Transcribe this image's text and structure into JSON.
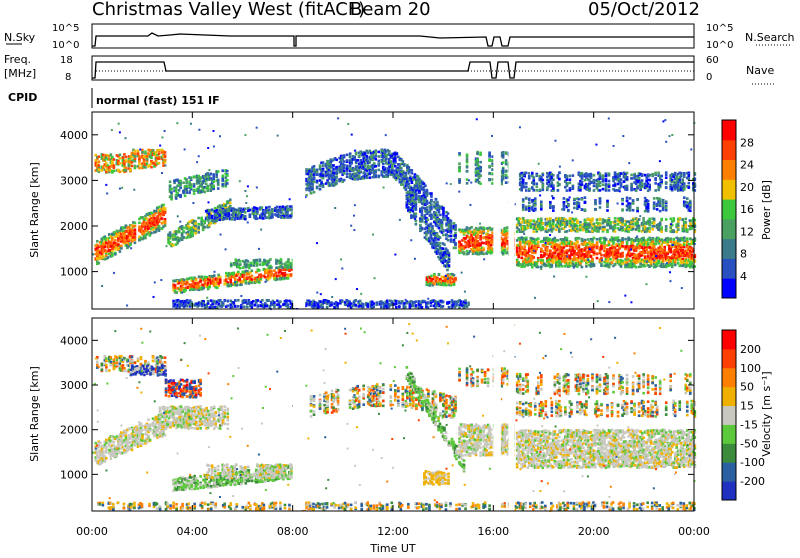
{
  "header": {
    "station": "Christmas Valley West (fitACF)",
    "beam": "Beam 20",
    "date": "05/Oct/2012"
  },
  "status_panels": {
    "nsky_label": "N.Sky",
    "nsearch_label": "N.Search",
    "nsky_ticks": [
      "10^5",
      "10^0"
    ],
    "nsearch_ticks": [
      "10^5",
      "10^0"
    ],
    "freq_label_1": "Freq.",
    "freq_label_2": "[MHz]",
    "freq_ticks": [
      "18",
      "8"
    ],
    "nave_label": "Nave",
    "nave_ticks": [
      "60",
      "0"
    ],
    "cpid_label": "CPID",
    "cpid_text": "normal (fast) 151 IF"
  },
  "chart_data": [
    {
      "type": "heatmap",
      "name": "power",
      "ylabel": "Slant Range [km]",
      "y_ticks": [
        "4000",
        "3000",
        "2000",
        "1000"
      ],
      "colorbar_label": "Power [dB]",
      "colorbar_ticks": [
        "28",
        "24",
        "20",
        "16",
        "12",
        "8",
        "4"
      ],
      "colors": [
        "#0000ff",
        "#2850c0",
        "#3a7a8a",
        "#4aa060",
        "#3cc83c",
        "#f0c000",
        "#ff8000",
        "#ff4000",
        "#ff0000"
      ]
    },
    {
      "type": "heatmap",
      "name": "velocity",
      "ylabel": "Slant Range [km]",
      "y_ticks": [
        "4000",
        "3000",
        "2000",
        "1000"
      ],
      "colorbar_label": "Velocity [m s⁻¹]",
      "colorbar_ticks": [
        "200",
        "100",
        "50",
        "15",
        "-15",
        "-50",
        "-100",
        "-200"
      ],
      "colors": [
        "#2030c0",
        "#2a60a0",
        "#3c8a3c",
        "#5cc83c",
        "#c8c8c0",
        "#f0b000",
        "#ff8000",
        "#ff4000",
        "#ff0000"
      ]
    }
  ],
  "x_axis": {
    "label": "Time UT",
    "ticks": [
      "00:00",
      "04:00",
      "08:00",
      "12:00",
      "16:00",
      "20:00",
      "00:00"
    ]
  }
}
